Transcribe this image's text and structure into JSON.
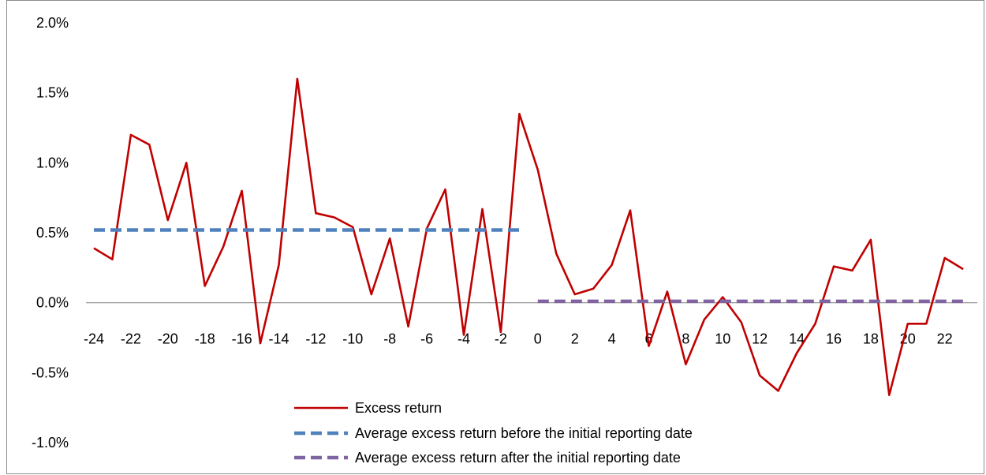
{
  "chart_data": {
    "type": "line",
    "title": "",
    "xlabel": "",
    "ylabel": "",
    "ylim": [
      -0.01,
      0.02
    ],
    "xlim": [
      -24,
      23
    ],
    "y_ticks": [
      "2.0%",
      "1.5%",
      "1.0%",
      "0.5%",
      "0.0%",
      "-0.5%",
      "-1.0%"
    ],
    "x_ticks": [
      "-24",
      "-22",
      "-20",
      "-18",
      "-16",
      "-14",
      "-12",
      "-10",
      "-8",
      "-6",
      "-4",
      "-2",
      "0",
      "2",
      "4",
      "6",
      "8",
      "10",
      "12",
      "14",
      "16",
      "18",
      "20",
      "22"
    ],
    "grid": false,
    "legend_position": "bottom",
    "series": [
      {
        "name": "Excess return",
        "color": "#c00000",
        "style": "solid",
        "x": [
          -24,
          -23,
          -22,
          -21,
          -20,
          -19,
          -18,
          -17,
          -16,
          -15,
          -14,
          -13,
          -12,
          -11,
          -10,
          -9,
          -8,
          -7,
          -6,
          -5,
          -4,
          -3,
          -2,
          -1,
          0,
          1,
          2,
          3,
          4,
          5,
          6,
          7,
          8,
          9,
          10,
          11,
          12,
          13,
          14,
          15,
          16,
          17,
          18,
          19,
          20,
          21,
          22,
          23
        ],
        "values": [
          0.0039,
          0.0031,
          0.012,
          0.0113,
          0.0059,
          0.01,
          0.0012,
          0.004,
          0.008,
          -0.0029,
          0.0027,
          0.016,
          0.0064,
          0.0061,
          0.0054,
          0.0006,
          0.0046,
          -0.0017,
          0.0053,
          0.0081,
          -0.0023,
          0.0067,
          -0.0021,
          0.0135,
          0.0095,
          0.0035,
          0.0006,
          0.001,
          0.0027,
          0.0066,
          -0.0031,
          0.0008,
          -0.0044,
          -0.0012,
          0.0004,
          -0.0014,
          -0.0052,
          -0.0063,
          -0.0036,
          -0.0015,
          0.0026,
          0.0023,
          0.0045,
          -0.0066,
          -0.0015,
          -0.0015,
          0.0032,
          0.0024
        ]
      },
      {
        "name": "Average excess return before the initial reporting date",
        "color": "#4f81bd",
        "style": "dashed",
        "x": [
          -24,
          -1
        ],
        "values": [
          0.0052,
          0.0052
        ]
      },
      {
        "name": "Average excess return after the initial reporting date",
        "color": "#8064a2",
        "style": "dashed",
        "x": [
          0,
          23
        ],
        "values": [
          0.0001,
          0.0001
        ]
      }
    ]
  }
}
